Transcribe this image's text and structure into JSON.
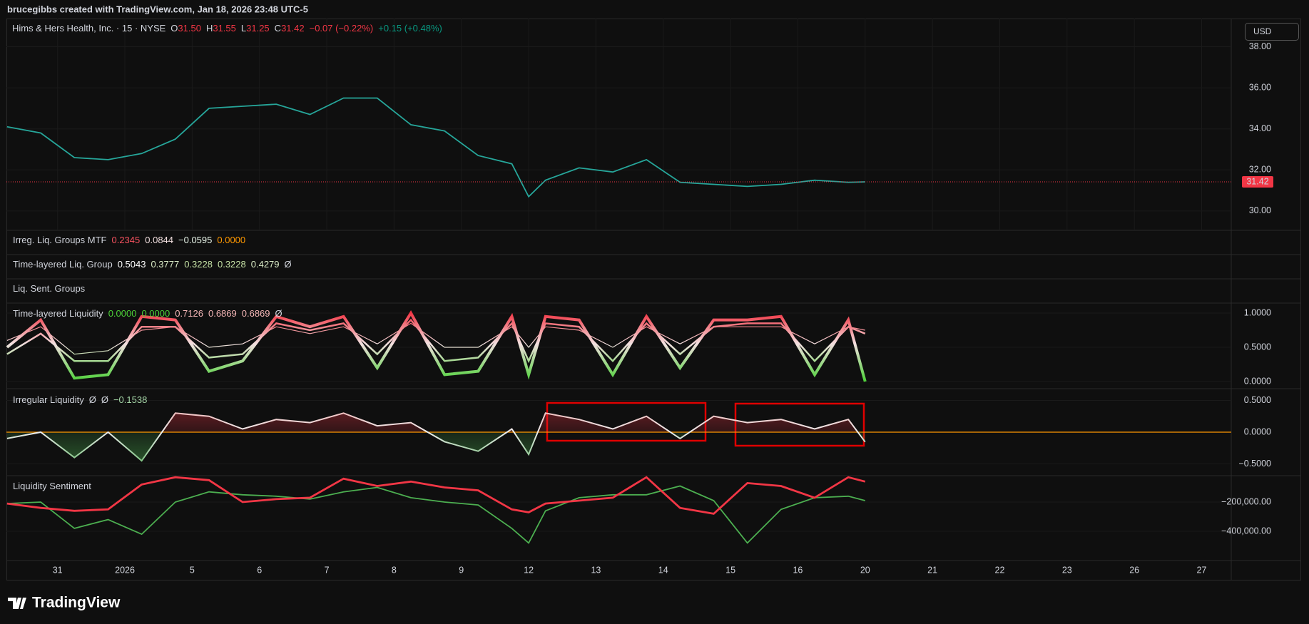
{
  "header": {
    "attribution": "brucegibbs created with TradingView.com, Jan 18, 2026 23:48 UTC-5"
  },
  "footer": {
    "brand": "TradingView"
  },
  "time_axis": {
    "categories": [
      "31",
      "2026",
      "5",
      "6",
      "7",
      "8",
      "9",
      "12",
      "13",
      "14",
      "15",
      "16",
      "20",
      "21",
      "22",
      "23",
      "26",
      "27"
    ],
    "xlim": [
      -0.76,
      17.44
    ],
    "x": [
      -0.75,
      -0.25,
      0.25,
      0.75,
      1.25,
      1.75,
      2.25,
      2.75,
      3.25,
      3.75,
      4.25,
      4.75,
      5.25,
      5.75,
      6.25,
      6.75,
      7.0,
      7.25,
      7.75,
      8.25,
      8.75,
      9.25,
      9.75,
      10.25,
      10.75,
      11.25,
      11.75,
      12.0
    ]
  },
  "price": {
    "legend": [
      {
        "text": "Hims & Hers Health, Inc. · 15 · NYSE",
        "color": "#d1d4dc"
      },
      {
        "label": "O",
        "text": "31.50",
        "color": "#f23645"
      },
      {
        "label": "H",
        "text": "31.55",
        "color": "#f23645"
      },
      {
        "label": "L",
        "text": "31.25",
        "color": "#f23645"
      },
      {
        "label": "C",
        "text": "31.42",
        "color": "#f23645"
      },
      {
        "text": "−0.07 (−0.22%)",
        "color": "#f23645"
      },
      {
        "text": "+0.15 (+0.48%)",
        "color": "#089981"
      }
    ],
    "currency": "USD",
    "ylim": [
      29.06,
      39.37
    ],
    "yticks": [
      {
        "value": 30,
        "label": "30.00"
      },
      {
        "value": 32,
        "label": "32.00"
      },
      {
        "value": 34,
        "label": "34.00"
      },
      {
        "value": 36,
        "label": "36.00"
      },
      {
        "value": 38,
        "label": "38.00"
      }
    ],
    "last": {
      "value": 31.42,
      "label": "31.42"
    },
    "color": "#26a69a",
    "values": [
      34.1,
      33.8,
      32.6,
      32.5,
      32.8,
      33.5,
      35.0,
      35.1,
      35.2,
      34.7,
      35.5,
      35.5,
      34.2,
      33.9,
      32.7,
      32.3,
      30.7,
      31.5,
      32.1,
      31.9,
      32.5,
      31.4,
      31.3,
      31.2,
      31.3,
      31.5,
      31.4,
      31.42
    ]
  },
  "collapsed_panes": [
    {
      "name": "Irreg. Liq. Groups MTF",
      "legend": [
        {
          "text": "0.2345",
          "color": "#f7525f"
        },
        {
          "text": "0.0844",
          "color": "#f0dede"
        },
        {
          "text": "−0.0595",
          "color": "#e8f5e9"
        },
        {
          "text": "0.0000",
          "color": "#ff9800"
        }
      ]
    },
    {
      "name": "Time-layered Liq. Group",
      "legend": [
        {
          "text": "0.5043",
          "color": "#ffffff"
        },
        {
          "text": "0.3777",
          "color": "#dcedc8"
        },
        {
          "text": "0.3228",
          "color": "#c5e1a5"
        },
        {
          "text": "0.3228",
          "color": "#c5e1a5"
        },
        {
          "text": "0.4279",
          "color": "#dcedc8"
        },
        {
          "text": "Ø",
          "color": "#d1d4dc"
        }
      ]
    },
    {
      "name": "Liq. Sent. Groups",
      "legend": []
    }
  ],
  "time_layered": {
    "name": "Time-layered Liquidity",
    "legend": [
      {
        "text": "0.0000",
        "color": "#4cd137"
      },
      {
        "text": "0.0000",
        "color": "#4cd137"
      },
      {
        "text": "0.7126",
        "color": "#f4b6b6"
      },
      {
        "text": "0.6869",
        "color": "#f4b6b6"
      },
      {
        "text": "0.6869",
        "color": "#f4b6b6"
      },
      {
        "text": "Ø",
        "color": "#d1d4dc"
      }
    ],
    "ylim": [
      -0.104,
      1.146
    ],
    "yticks": [
      {
        "value": 0,
        "label": "0.0000"
      },
      {
        "value": 0.5,
        "label": "0.5000"
      },
      {
        "value": 1,
        "label": "1.0000"
      }
    ],
    "series": [
      {
        "values": [
          0.6,
          0.8,
          0.4,
          0.45,
          0.75,
          0.8,
          0.5,
          0.55,
          0.8,
          0.7,
          0.8,
          0.55,
          0.85,
          0.5,
          0.5,
          0.8,
          0.5,
          0.8,
          0.75,
          0.5,
          0.8,
          0.55,
          0.8,
          0.8,
          0.8,
          0.55,
          0.8,
          0.75
        ]
      },
      {
        "values": [
          0.4,
          0.7,
          0.3,
          0.3,
          0.8,
          0.8,
          0.35,
          0.4,
          0.85,
          0.75,
          0.85,
          0.4,
          0.9,
          0.3,
          0.35,
          0.85,
          0.3,
          0.85,
          0.8,
          0.3,
          0.85,
          0.4,
          0.8,
          0.85,
          0.85,
          0.3,
          0.8,
          0.7
        ]
      },
      {
        "values": [
          0.5,
          0.9,
          0.05,
          0.1,
          0.95,
          0.9,
          0.15,
          0.3,
          0.95,
          0.8,
          0.95,
          0.2,
          1.0,
          0.1,
          0.15,
          0.95,
          0.1,
          0.95,
          0.9,
          0.1,
          0.95,
          0.2,
          0.9,
          0.9,
          0.95,
          0.1,
          0.9,
          0.0
        ]
      }
    ]
  },
  "irregular": {
    "name": "Irregular Liquidity",
    "legend": [
      {
        "text": "Ø",
        "color": "#d1d4dc"
      },
      {
        "text": "Ø",
        "color": "#d1d4dc"
      },
      {
        "text": "−0.1538",
        "color": "#a5d6a7"
      }
    ],
    "ylim": [
      -0.685,
      0.685
    ],
    "yticks": [
      {
        "value": -0.5,
        "label": "−0.5000"
      },
      {
        "value": 0,
        "label": "0.0000"
      },
      {
        "value": 0.5,
        "label": "0.5000"
      }
    ],
    "baseline_color": "#ff9800",
    "values": [
      -0.1,
      0.0,
      -0.4,
      0.0,
      -0.45,
      0.3,
      0.25,
      0.05,
      0.2,
      0.15,
      0.3,
      0.1,
      0.15,
      -0.15,
      -0.3,
      0.05,
      -0.35,
      0.3,
      0.2,
      0.05,
      0.25,
      -0.1,
      0.25,
      0.15,
      0.2,
      0.05,
      0.2,
      -0.1538
    ]
  },
  "sentiment": {
    "name": "Liquidity Sentiment",
    "ylim": [
      -600000,
      -19500
    ],
    "yticks": [
      {
        "value": -400000,
        "label": "−400,000.00"
      },
      {
        "value": -200000,
        "label": "−200,000.00"
      }
    ],
    "series": [
      {
        "color": "#4caf50",
        "values": [
          -210000,
          -200000,
          -380000,
          -320000,
          -420000,
          -200000,
          -130000,
          -150000,
          -160000,
          -180000,
          -130000,
          -100000,
          -170000,
          -200000,
          -220000,
          -380000,
          -480000,
          -260000,
          -170000,
          -150000,
          -150000,
          -90000,
          -190000,
          -480000,
          -250000,
          -170000,
          -160000,
          -190000
        ]
      },
      {
        "color": "#f23645",
        "values": [
          -210000,
          -240000,
          -260000,
          -250000,
          -80000,
          -30000,
          -50000,
          -200000,
          -180000,
          -170000,
          -40000,
          -90000,
          -60000,
          -100000,
          -120000,
          -250000,
          -270000,
          -210000,
          -190000,
          -170000,
          -30000,
          -240000,
          -280000,
          -70000,
          -90000,
          -170000,
          -30000,
          -60000
        ]
      }
    ]
  }
}
